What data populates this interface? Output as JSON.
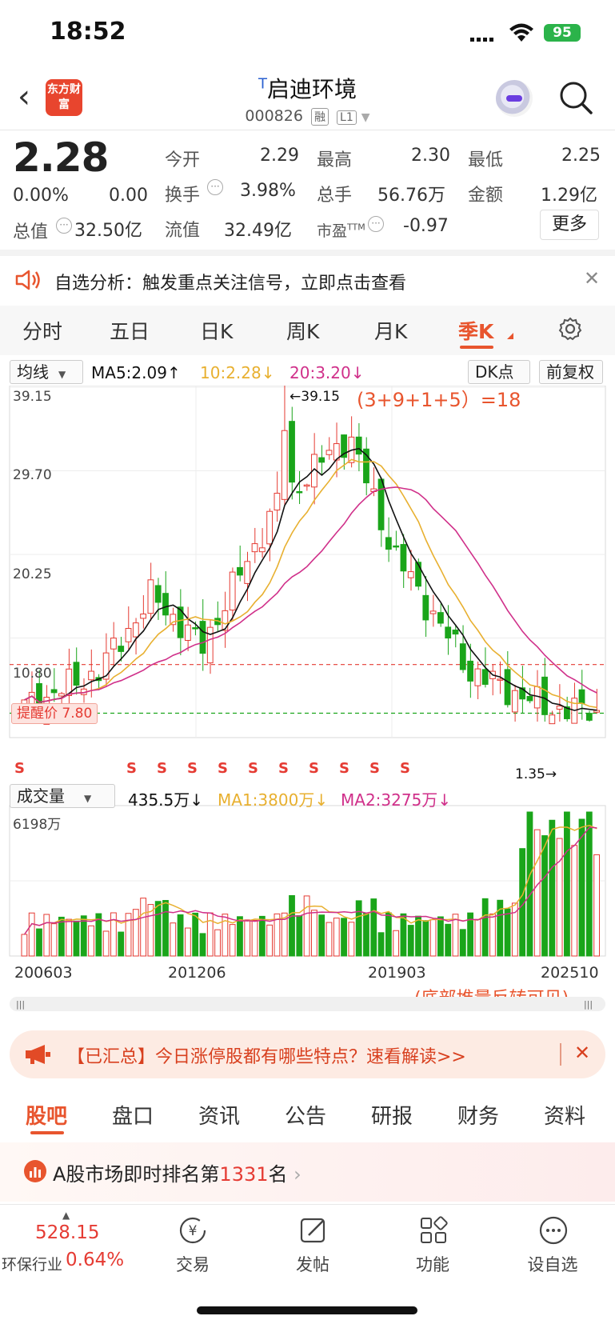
{
  "status_bar": {
    "time": "18:52",
    "battery": "95"
  },
  "header": {
    "logo_text": "东方财富",
    "title_prefix": "T",
    "title": "启迪环境",
    "code": "000826",
    "tags": [
      "融",
      "L1"
    ]
  },
  "quote": {
    "price": "2.28",
    "change_pct": "0.00%",
    "change": "0.00",
    "fields": {
      "open_label": "今开",
      "open": "2.29",
      "high_label": "最高",
      "high": "2.30",
      "low_label": "最低",
      "low": "2.25",
      "turnover_label": "换手",
      "turnover": "3.98%",
      "volume_label": "总手",
      "volume": "56.76万",
      "amount_label": "金额",
      "amount": "1.29亿",
      "mktcap_label": "总值",
      "mktcap": "32.50亿",
      "float_label": "流值",
      "float": "32.49亿",
      "pe_label": "市盈",
      "pe_sup": "TTM",
      "pe": "-0.97"
    },
    "more_label": "更多"
  },
  "notice": {
    "text": "自选分析：触发重点关注信号，立即点击查看"
  },
  "chart_tabs": [
    "分时",
    "五日",
    "日K",
    "周K",
    "月K",
    "季K"
  ],
  "active_chart_tab": "季K",
  "indicator_bar": {
    "ma_select": "均线",
    "ma5": "MA5:2.09",
    "ma10": "10:2.28",
    "ma20": "20:3.20",
    "dk_label": "DK点",
    "adjust_label": "前复权"
  },
  "kline": {
    "y_ticks": [
      "39.15",
      "29.70",
      "20.25",
      "10.80"
    ],
    "max_marker": "39.15",
    "min_marker": "1.35",
    "alert_price_label": "提醒价 7.80",
    "annotation": "(3+9+1+5）=18",
    "signal_letter": "S"
  },
  "volume_bar": {
    "select": "成交量",
    "value": "435.5万",
    "ma1": "MA1:3800万",
    "ma2": "MA2:3275万",
    "y_max": "6198万",
    "x_ticks": [
      "200603",
      "201206",
      "201903",
      "202510"
    ],
    "annotation": "(底部堆量反转可见)"
  },
  "banner": {
    "text": "【已汇总】今日涨停股都有哪些特点？速看解读>>"
  },
  "bottom_tabs": [
    "股吧",
    "盘口",
    "资讯",
    "公告",
    "研报",
    "财务",
    "资料"
  ],
  "active_bottom_tab": "股吧",
  "rank": {
    "prefix": "A股市场即时排名第",
    "value": "1331",
    "suffix": "名"
  },
  "nav": {
    "index_value": "528.15",
    "industry": "环保行业",
    "industry_change": "0.64%",
    "items": [
      "交易",
      "发帖",
      "功能",
      "设自选"
    ]
  },
  "colors": {
    "up": "#e53b33",
    "down": "#1aa51a",
    "accent": "#e8552e",
    "ma5": "#111111",
    "ma10": "#e8b030",
    "ma20": "#d0308a"
  },
  "chart_data": {
    "type": "candlestick",
    "ylim": [
      1.35,
      39.15
    ],
    "x_ticks": [
      "200603",
      "201206",
      "201903",
      "202510"
    ],
    "y_ticks": [
      39.15,
      29.7,
      20.25,
      10.8
    ],
    "max_price": 39.15,
    "min_price": 1.35,
    "alert_price": 7.8,
    "series": [
      {
        "name": "MA5",
        "last": 2.09
      },
      {
        "name": "10",
        "last": 2.28
      },
      {
        "name": "20",
        "last": 3.2
      }
    ],
    "volume": {
      "current": "435.5万",
      "max": "6198万",
      "ma1": "3800万",
      "ma2": "3275万"
    }
  }
}
